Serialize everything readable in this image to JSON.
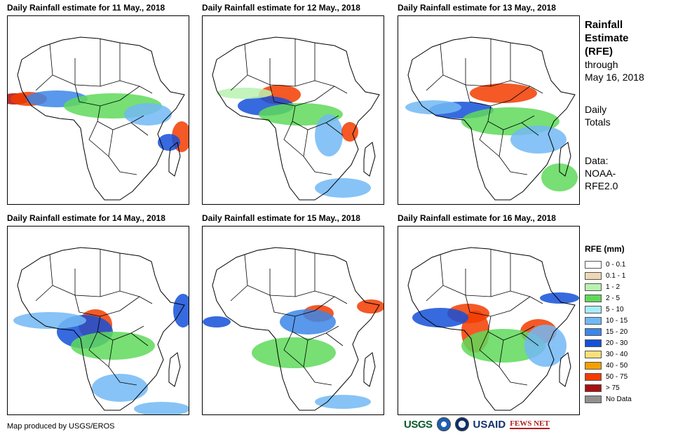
{
  "panels": [
    {
      "title": "Daily Rainfall estimate for 11 May., 2018"
    },
    {
      "title": "Daily Rainfall estimate for 12 May., 2018"
    },
    {
      "title": "Daily Rainfall estimate for 13 May., 2018"
    },
    {
      "title": "Daily Rainfall estimate for 14 May., 2018"
    },
    {
      "title": "Daily Rainfall estimate for 15 May., 2018"
    },
    {
      "title": "Daily Rainfall estimate for 16 May., 2018"
    }
  ],
  "side": {
    "title_1": "Rainfall",
    "title_2": "Estimate",
    "title_3": "(RFE)",
    "through_1": "through",
    "through_2": "May 16, 2018",
    "daily_1": "Daily",
    "daily_2": "Totals",
    "data_1": "Data:",
    "data_2": "NOAA-",
    "data_3": "RFE2.0"
  },
  "legend": {
    "title": "RFE (mm)",
    "items": [
      {
        "label": "0 - 0.1",
        "color": "#ffffff"
      },
      {
        "label": "0.1 - 1",
        "color": "#eed8b4"
      },
      {
        "label": "1 - 2",
        "color": "#b8f2b0"
      },
      {
        "label": "2 - 5",
        "color": "#5fd95a"
      },
      {
        "label": "5 - 10",
        "color": "#a8ecf8"
      },
      {
        "label": "10 - 15",
        "color": "#72b8f4"
      },
      {
        "label": "15 - 20",
        "color": "#3c86e8"
      },
      {
        "label": "20 - 30",
        "color": "#1450d8"
      },
      {
        "label": "30 - 40",
        "color": "#fae07a"
      },
      {
        "label": "40 - 50",
        "color": "#f6a000"
      },
      {
        "label": "50 - 75",
        "color": "#f23c00"
      },
      {
        "label": "> 75",
        "color": "#a81010"
      },
      {
        "label": "No Data",
        "color": "#909090"
      }
    ]
  },
  "credit": "Map produced by USGS/EROS",
  "logos": {
    "usgs": "USGS",
    "usaid": "USAID",
    "fews": "FEWS NET"
  }
}
